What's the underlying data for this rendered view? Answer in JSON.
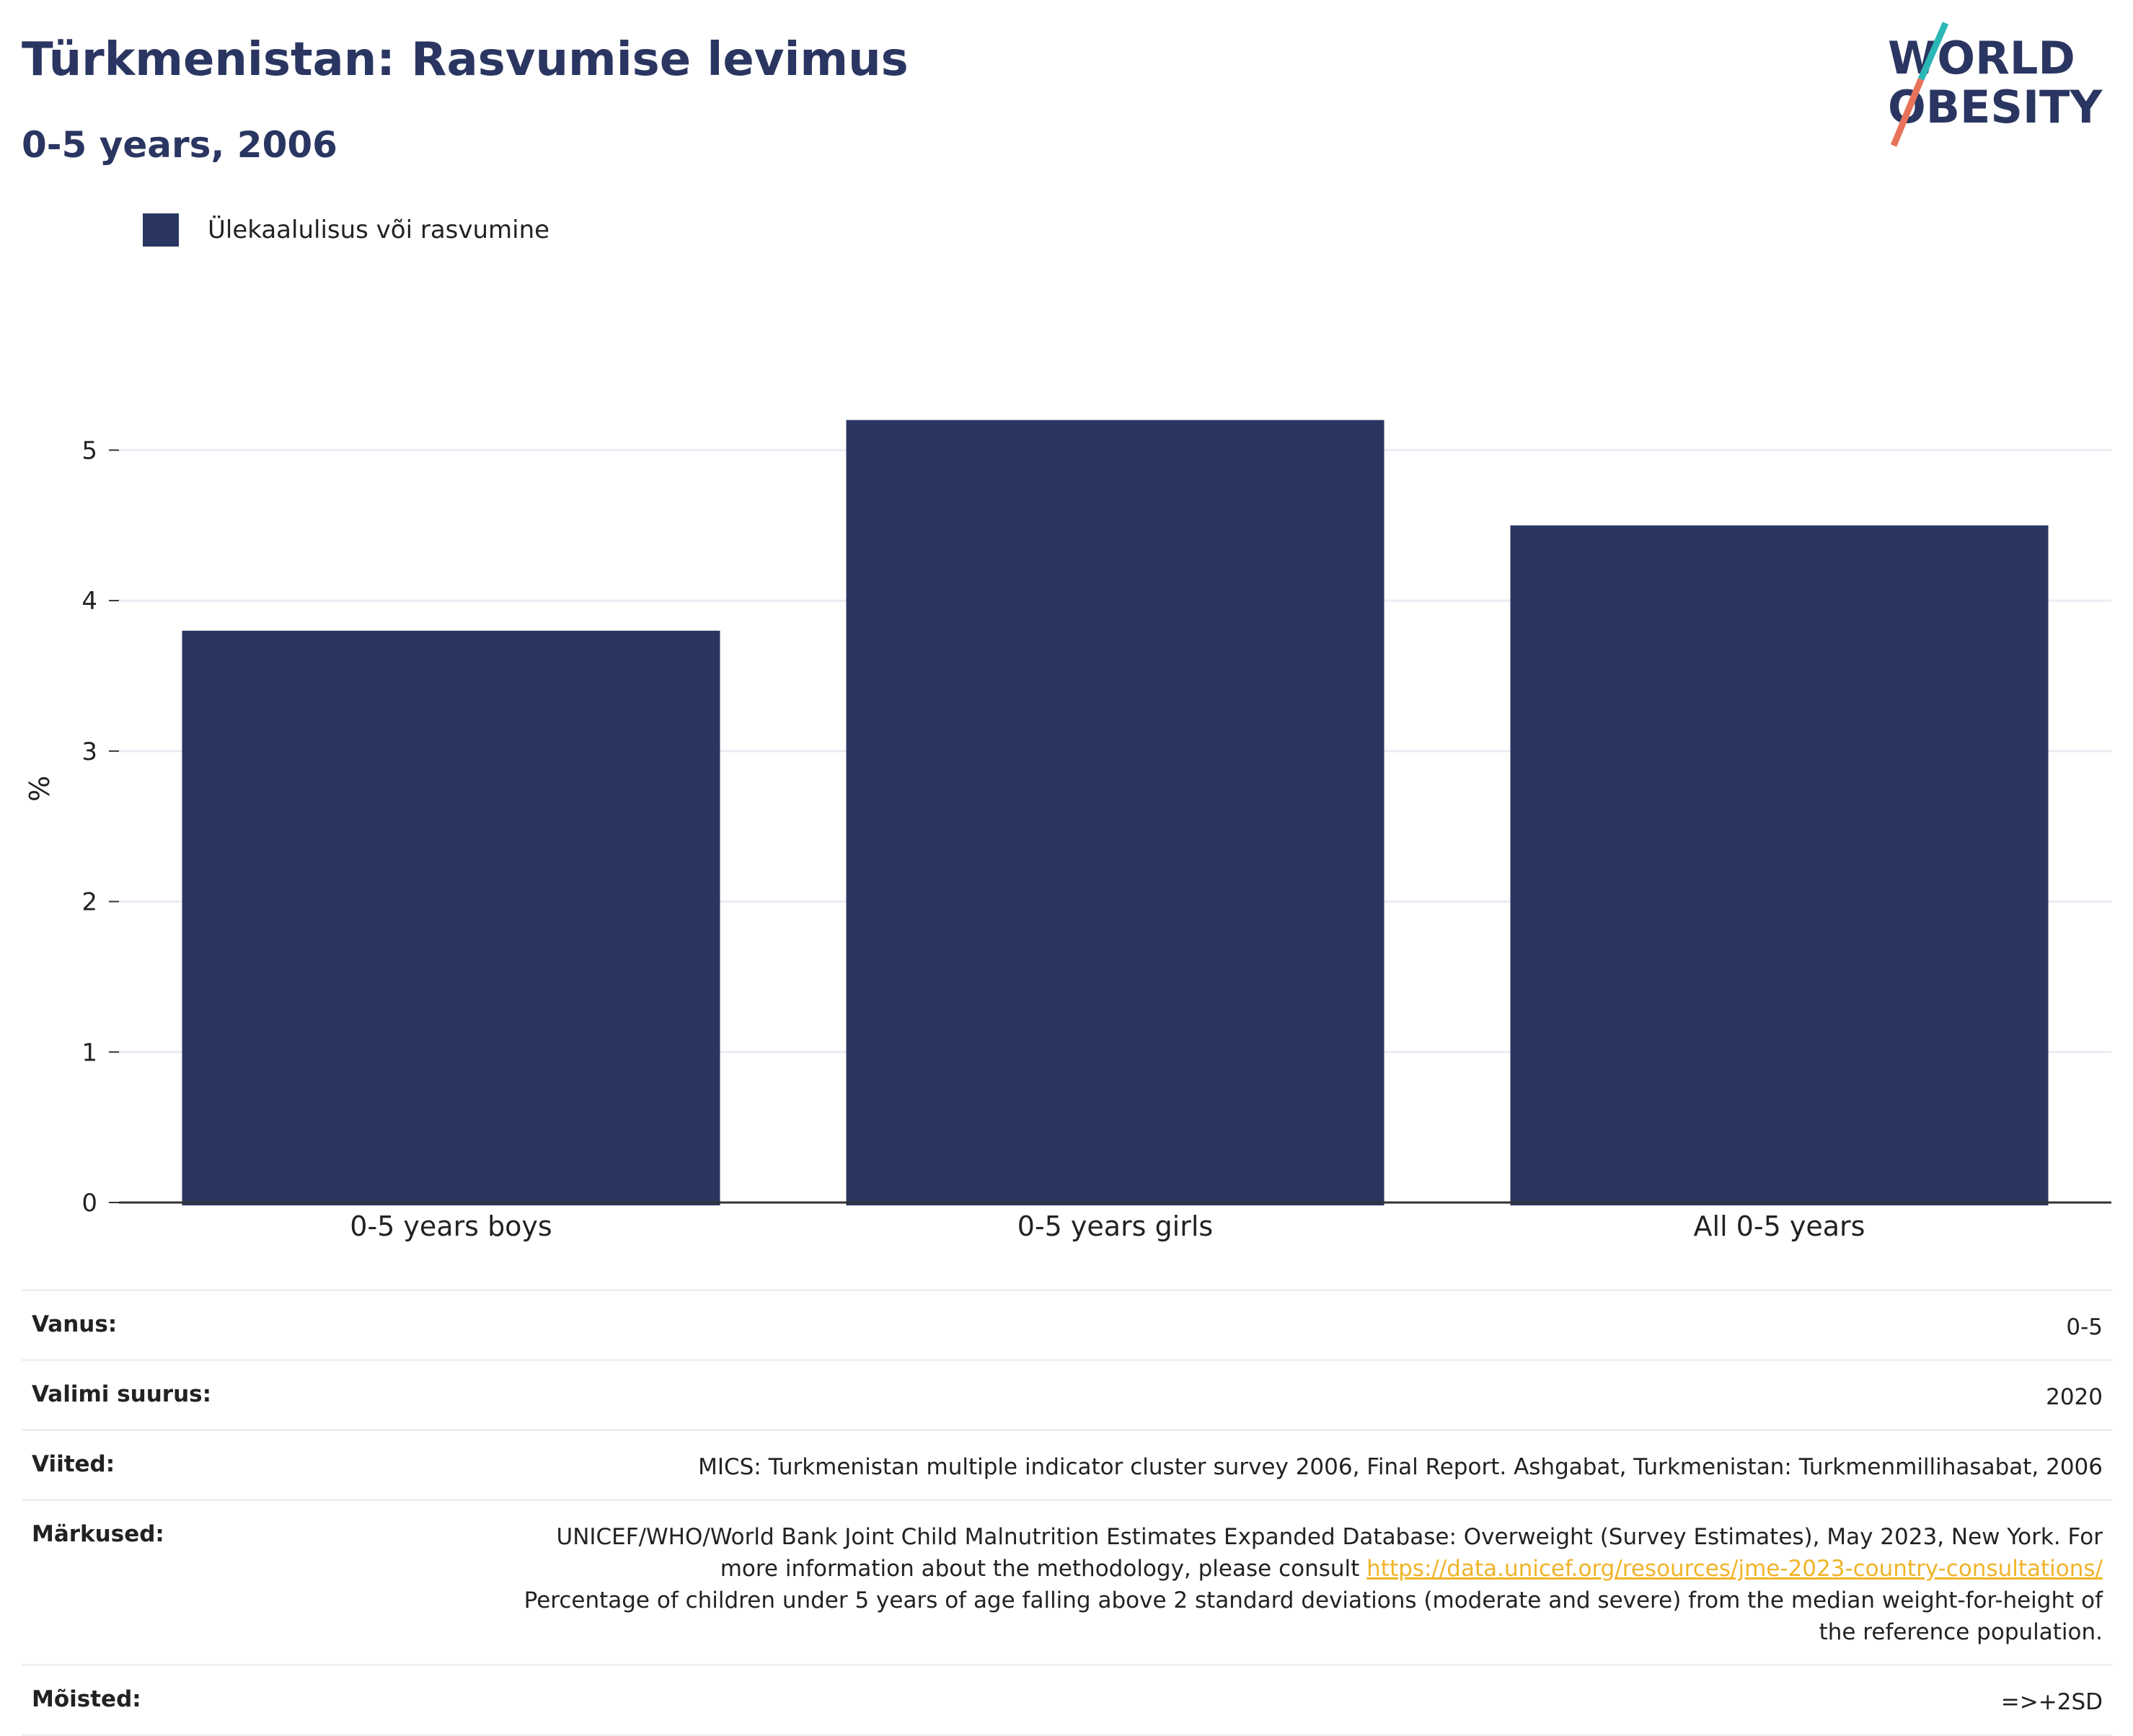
{
  "header": {
    "title": "Türkmenistan: Rasvumise levimus",
    "subtitle": "0-5 years, 2006"
  },
  "logo": {
    "line1": "WORLD",
    "line2": "OBESITY"
  },
  "legend": {
    "label": "Ülekaalulisus või rasvumine"
  },
  "colors": {
    "bar": "#2a3661",
    "accent_teal": "#2ab7b5",
    "accent_coral": "#e8735a",
    "link": "#f0b429"
  },
  "chart_data": {
    "type": "bar",
    "categories": [
      "0-5 years boys",
      "0-5 years girls",
      "All 0-5 years"
    ],
    "series": [
      {
        "name": "Ülekaalulisus või rasvumine",
        "values": [
          3.8,
          5.2,
          4.5
        ]
      }
    ],
    "ylabel": "%",
    "ylim": [
      0,
      5.5
    ],
    "yticks": [
      0,
      1,
      2,
      3,
      4,
      5
    ],
    "grid": true,
    "legend_position": "top-left"
  },
  "info": {
    "age_label": "Vanus:",
    "age_value": "0-5",
    "sample_label": "Valimi suurus:",
    "sample_value": "2020",
    "refs_label": "Viited:",
    "refs_value": "MICS: Turkmenistan multiple indicator cluster survey 2006, Final Report. Ashgabat, Turkmenistan: Turkmenmillihasabat, 2006",
    "notes_label": "Märkused:",
    "notes_text1": "UNICEF/WHO/World Bank Joint Child Malnutrition Estimates Expanded Database: Overweight (Survey Estimates), May 2023, New York. For more information about the methodology, please consult",
    "notes_link": "https://data.unicef.org/resources/jme-2023-country-consultations/",
    "notes_text2": "Percentage of children under 5 years of age falling above 2 standard deviations (moderate and severe) from the median weight-for-height of the reference population.",
    "defs_label": "Mõisted:",
    "defs_value": "=>+2SD"
  }
}
